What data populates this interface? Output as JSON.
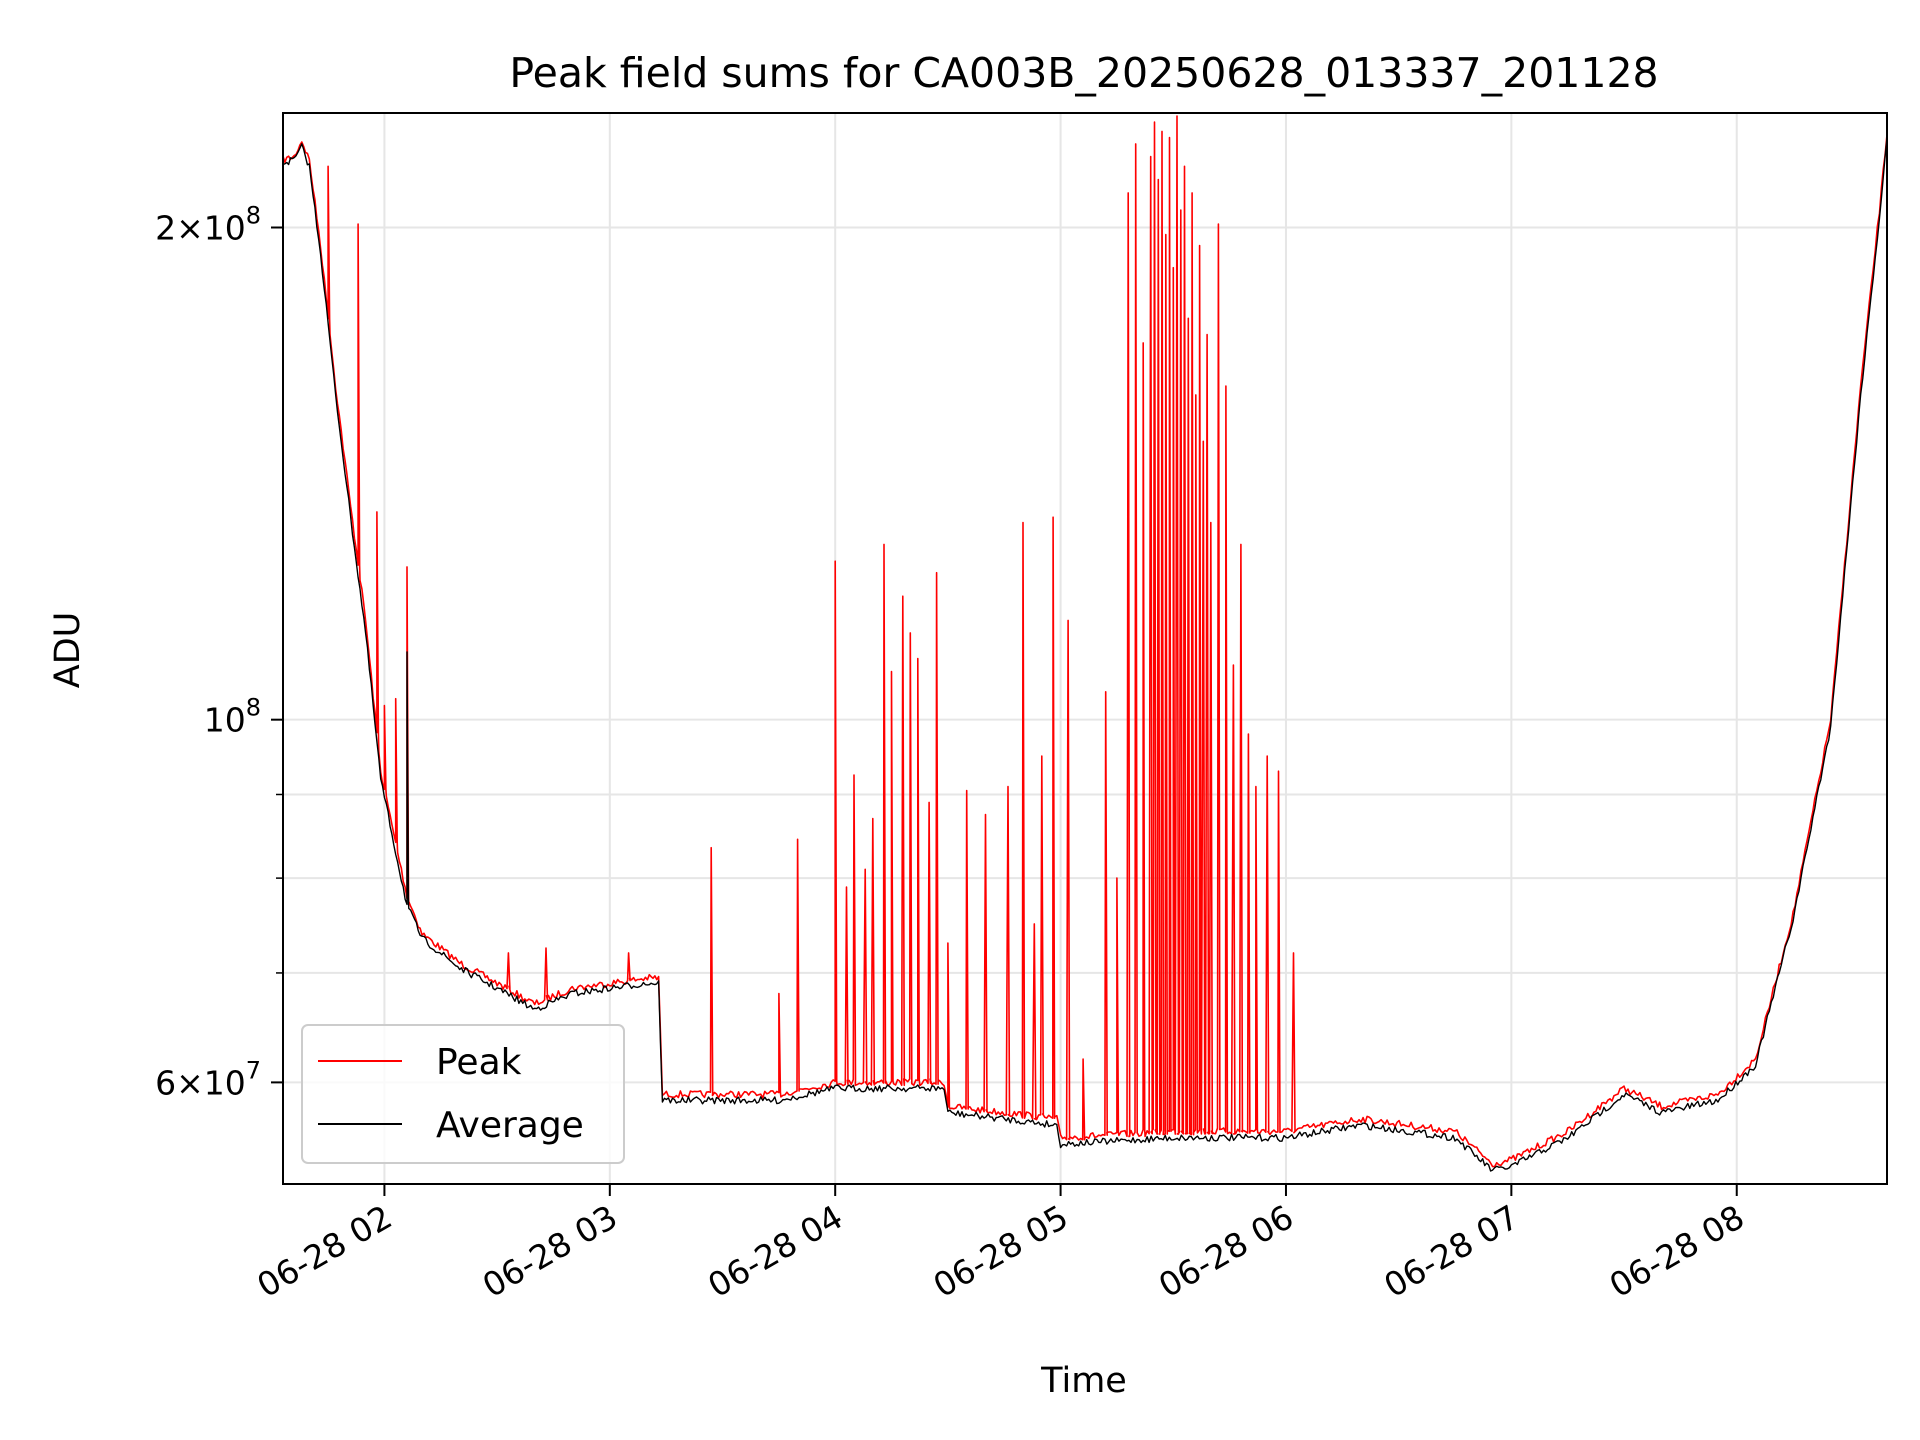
{
  "chart_data": {
    "type": "line",
    "title": "Peak field sums for CA003B_20250628_013337_201128",
    "xlabel": "Time",
    "ylabel": "ADU",
    "y_scale": "log",
    "ylim": [
      52000000,
      235000000
    ],
    "x_range": [
      "06-28 01:33",
      "06-28 08:40"
    ],
    "x_ticks": [
      {
        "time": "06-28 02:00",
        "label": "06-28 02"
      },
      {
        "time": "06-28 03:00",
        "label": "06-28 03"
      },
      {
        "time": "06-28 04:00",
        "label": "06-28 04"
      },
      {
        "time": "06-28 05:00",
        "label": "06-28 05"
      },
      {
        "time": "06-28 06:00",
        "label": "06-28 06"
      },
      {
        "time": "06-28 07:00",
        "label": "06-28 07"
      },
      {
        "time": "06-28 08:00",
        "label": "06-28 08"
      }
    ],
    "y_ticks": [
      {
        "value": 60000000,
        "mantissa": "6",
        "exp": "7"
      },
      {
        "value": 100000000,
        "mantissa": "",
        "exp": "8"
      },
      {
        "value": 200000000,
        "mantissa": "2",
        "exp": "8"
      }
    ],
    "y_minor_ticks": [
      70000000,
      80000000,
      90000000
    ],
    "grid": true,
    "legend": "lower-left",
    "series": [
      {
        "name": "Peak",
        "color": "#ff0000",
        "points": [
          [
            "06-28 01:33",
            220000000
          ],
          [
            "06-28 01:36",
            221000000
          ],
          [
            "06-28 01:38",
            226000000
          ],
          [
            "06-28 01:40",
            220000000
          ],
          [
            "06-28 01:43",
            195000000
          ],
          [
            "06-28 01:47",
            160000000
          ],
          [
            "06-28 01:51",
            135000000
          ],
          [
            "06-28 01:55",
            115000000
          ],
          [
            "06-28 01:59",
            93000000
          ],
          [
            "06-28 02:03",
            84000000
          ],
          [
            "06-28 02:06",
            78000000
          ],
          [
            "06-28 02:10",
            74000000
          ],
          [
            "06-28 02:20",
            71000000
          ],
          [
            "06-28 02:30",
            69000000
          ],
          [
            "06-28 02:40",
            67000000
          ],
          [
            "06-28 02:50",
            68500000
          ],
          [
            "06-28 03:00",
            69000000
          ],
          [
            "06-28 03:10",
            69500000
          ],
          [
            "06-28 03:13",
            69500000
          ],
          [
            "06-28 03:14",
            59000000
          ],
          [
            "06-28 03:30",
            59000000
          ],
          [
            "06-28 03:45",
            59000000
          ],
          [
            "06-28 04:00",
            60000000
          ],
          [
            "06-28 04:15",
            60000000
          ],
          [
            "06-28 04:29",
            60000000
          ],
          [
            "06-28 04:30",
            58000000
          ],
          [
            "06-28 04:45",
            57500000
          ],
          [
            "06-28 04:59",
            57000000
          ],
          [
            "06-28 05:00",
            55500000
          ],
          [
            "06-28 05:30",
            56000000
          ],
          [
            "06-28 06:00",
            56000000
          ],
          [
            "06-28 06:20",
            57000000
          ],
          [
            "06-28 06:45",
            56000000
          ],
          [
            "06-28 06:55",
            53500000
          ],
          [
            "06-28 07:00",
            53800000
          ],
          [
            "06-28 07:15",
            56000000
          ],
          [
            "06-28 07:30",
            59500000
          ],
          [
            "06-28 07:40",
            58000000
          ],
          [
            "06-28 07:55",
            59000000
          ],
          [
            "06-28 08:05",
            62000000
          ],
          [
            "06-28 08:15",
            76000000
          ],
          [
            "06-28 08:25",
            100000000
          ],
          [
            "06-28 08:33",
            160000000
          ],
          [
            "06-28 08:38",
            205000000
          ],
          [
            "06-28 08:40",
            228000000
          ]
        ],
        "spikes": [
          [
            "06-28 01:45",
            218000000
          ],
          [
            "06-28 01:53",
            201000000
          ],
          [
            "06-28 01:58",
            134000000
          ],
          [
            "06-28 02:00",
            102000000
          ],
          [
            "06-28 02:03",
            103000000
          ],
          [
            "06-28 02:06",
            124000000
          ],
          [
            "06-28 02:33",
            72000000
          ],
          [
            "06-28 02:43",
            72500000
          ],
          [
            "06-28 03:05",
            72000000
          ],
          [
            "06-28 03:27",
            83500000
          ],
          [
            "06-28 03:45",
            68000000
          ],
          [
            "06-28 03:50",
            84500000
          ],
          [
            "06-28 04:00",
            125000000
          ],
          [
            "06-28 04:03",
            79000000
          ],
          [
            "06-28 04:05",
            92500000
          ],
          [
            "06-28 04:08",
            81000000
          ],
          [
            "06-28 04:10",
            87000000
          ],
          [
            "06-28 04:13",
            128000000
          ],
          [
            "06-28 04:15",
            107000000
          ],
          [
            "06-28 04:18",
            119000000
          ],
          [
            "06-28 04:20",
            113000000
          ],
          [
            "06-28 04:22",
            109000000
          ],
          [
            "06-28 04:25",
            89000000
          ],
          [
            "06-28 04:27",
            123000000
          ],
          [
            "06-28 04:30",
            73000000
          ],
          [
            "06-28 04:35",
            90500000
          ],
          [
            "06-28 04:40",
            87500000
          ],
          [
            "06-28 04:46",
            91000000
          ],
          [
            "06-28 04:50",
            132000000
          ],
          [
            "06-28 04:53",
            75000000
          ],
          [
            "06-28 04:55",
            95000000
          ],
          [
            "06-28 04:58",
            133000000
          ],
          [
            "06-28 05:02",
            115000000
          ],
          [
            "06-28 05:06",
            62000000
          ],
          [
            "06-28 05:12",
            104000000
          ],
          [
            "06-28 05:15",
            80000000
          ],
          [
            "06-28 05:18",
            210000000
          ],
          [
            "06-28 05:20",
            225000000
          ],
          [
            "06-28 05:22",
            170000000
          ],
          [
            "06-28 05:24",
            221000000
          ],
          [
            "06-28 05:25",
            232000000
          ],
          [
            "06-28 05:26",
            214000000
          ],
          [
            "06-28 05:27",
            229000000
          ],
          [
            "06-28 05:28",
            198000000
          ],
          [
            "06-28 05:29",
            227000000
          ],
          [
            "06-28 05:30",
            189000000
          ],
          [
            "06-28 05:31",
            234000000
          ],
          [
            "06-28 05:32",
            205000000
          ],
          [
            "06-28 05:33",
            218000000
          ],
          [
            "06-28 05:34",
            176000000
          ],
          [
            "06-28 05:35",
            210000000
          ],
          [
            "06-28 05:36",
            158000000
          ],
          [
            "06-28 05:37",
            195000000
          ],
          [
            "06-28 05:38",
            148000000
          ],
          [
            "06-28 05:39",
            172000000
          ],
          [
            "06-28 05:40",
            132000000
          ],
          [
            "06-28 05:42",
            201000000
          ],
          [
            "06-28 05:44",
            160000000
          ],
          [
            "06-28 05:46",
            108000000
          ],
          [
            "06-28 05:48",
            128000000
          ],
          [
            "06-28 05:50",
            98000000
          ],
          [
            "06-28 05:52",
            91000000
          ],
          [
            "06-28 05:55",
            95000000
          ],
          [
            "06-28 05:58",
            93000000
          ],
          [
            "06-28 06:02",
            72000000
          ]
        ]
      },
      {
        "name": "Average",
        "color": "#000000",
        "points": [
          [
            "06-28 01:33",
            219000000
          ],
          [
            "06-28 01:36",
            220000000
          ],
          [
            "06-28 01:38",
            224000000
          ],
          [
            "06-28 01:40",
            218000000
          ],
          [
            "06-28 01:43",
            193000000
          ],
          [
            "06-28 01:47",
            158000000
          ],
          [
            "06-28 01:51",
            133000000
          ],
          [
            "06-28 01:55",
            113000000
          ],
          [
            "06-28 01:59",
            92000000
          ],
          [
            "06-28 02:03",
            83000000
          ],
          [
            "06-28 02:06",
            77000000
          ],
          [
            "06-28 02:10",
            73500000
          ],
          [
            "06-28 02:20",
            70500000
          ],
          [
            "06-28 02:30",
            68500000
          ],
          [
            "06-28 02:40",
            66500000
          ],
          [
            "06-28 02:50",
            68000000
          ],
          [
            "06-28 03:00",
            68500000
          ],
          [
            "06-28 03:10",
            69000000
          ],
          [
            "06-28 03:13",
            69000000
          ],
          [
            "06-28 03:14",
            58500000
          ],
          [
            "06-28 03:30",
            58500000
          ],
          [
            "06-28 03:45",
            58500000
          ],
          [
            "06-28 04:00",
            59500000
          ],
          [
            "06-28 04:15",
            59500000
          ],
          [
            "06-28 04:29",
            59500000
          ],
          [
            "06-28 04:30",
            57500000
          ],
          [
            "06-28 04:45",
            57000000
          ],
          [
            "06-28 04:59",
            56500000
          ],
          [
            "06-28 05:00",
            55000000
          ],
          [
            "06-28 05:30",
            55500000
          ],
          [
            "06-28 06:00",
            55500000
          ],
          [
            "06-28 06:20",
            56500000
          ],
          [
            "06-28 06:45",
            55500000
          ],
          [
            "06-28 06:55",
            53000000
          ],
          [
            "06-28 07:00",
            53300000
          ],
          [
            "06-28 07:15",
            55500000
          ],
          [
            "06-28 07:30",
            59000000
          ],
          [
            "06-28 07:40",
            57500000
          ],
          [
            "06-28 07:55",
            58500000
          ],
          [
            "06-28 08:05",
            61500000
          ],
          [
            "06-28 08:15",
            75500000
          ],
          [
            "06-28 08:25",
            99000000
          ],
          [
            "06-28 08:33",
            158000000
          ],
          [
            "06-28 08:38",
            203000000
          ],
          [
            "06-28 08:40",
            227000000
          ]
        ],
        "spikes": [
          [
            "06-28 02:06",
            110000000
          ]
        ]
      }
    ]
  }
}
